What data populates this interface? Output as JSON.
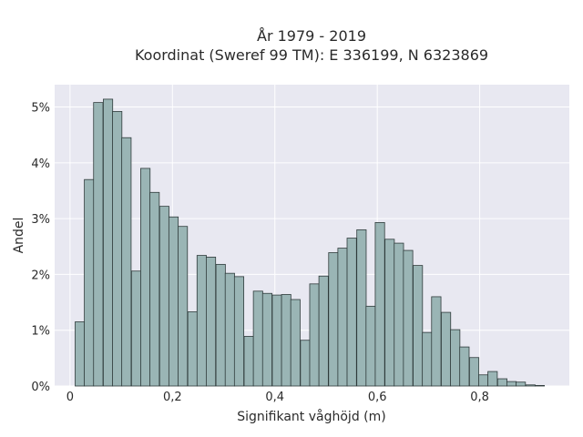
{
  "chart_data": {
    "type": "bar",
    "title_line1": "År 1979 - 2019",
    "title_line2": "Koordinat (Sweref 99 TM): E 336199, N 6323869",
    "xlabel": "Signifikant våghöjd (m)",
    "ylabel": "Andel",
    "bin_width": 0.0183,
    "bins_start": [
      0.01,
      0.028,
      0.046,
      0.065,
      0.083,
      0.101,
      0.12,
      0.138,
      0.156,
      0.175,
      0.193,
      0.211,
      0.23,
      0.248,
      0.266,
      0.285,
      0.303,
      0.321,
      0.34,
      0.358,
      0.376,
      0.395,
      0.413,
      0.431,
      0.45,
      0.468,
      0.486,
      0.505,
      0.523,
      0.541,
      0.56,
      0.578,
      0.596,
      0.615,
      0.633,
      0.651,
      0.67,
      0.688,
      0.706,
      0.725,
      0.743,
      0.761,
      0.78,
      0.798,
      0.816,
      0.835,
      0.853,
      0.871,
      0.89,
      0.908
    ],
    "values": [
      1.15,
      3.7,
      5.08,
      5.14,
      4.92,
      4.45,
      2.06,
      3.9,
      3.47,
      3.22,
      3.03,
      2.86,
      1.33,
      2.34,
      2.31,
      2.18,
      2.02,
      1.96,
      0.89,
      1.7,
      1.66,
      1.63,
      1.64,
      1.55,
      0.82,
      1.83,
      1.97,
      2.39,
      2.47,
      2.65,
      2.8,
      1.43,
      2.93,
      2.63,
      2.56,
      2.43,
      2.16,
      0.96,
      1.6,
      1.32,
      1.01,
      0.7,
      0.51,
      0.2,
      0.26,
      0.13,
      0.08,
      0.07,
      0.02,
      0.01
    ],
    "xlim": [
      -0.03,
      0.975
    ],
    "ylim": [
      0,
      5.4
    ],
    "x_ticks": [
      0,
      0.2,
      0.4,
      0.6,
      0.8
    ],
    "x_tick_labels": [
      "0",
      "0,2",
      "0,4",
      "0,6",
      "0,8"
    ],
    "y_ticks": [
      0,
      1,
      2,
      3,
      4,
      5
    ],
    "y_tick_labels": [
      "0%",
      "1%",
      "2%",
      "3%",
      "4%",
      "5%"
    ],
    "grid": true,
    "colors": {
      "bar_fill": "#9ab5b5",
      "bar_stroke": "#2f3b3b",
      "plot_bg": "#e8e8f1",
      "grid": "#ffffff"
    }
  }
}
